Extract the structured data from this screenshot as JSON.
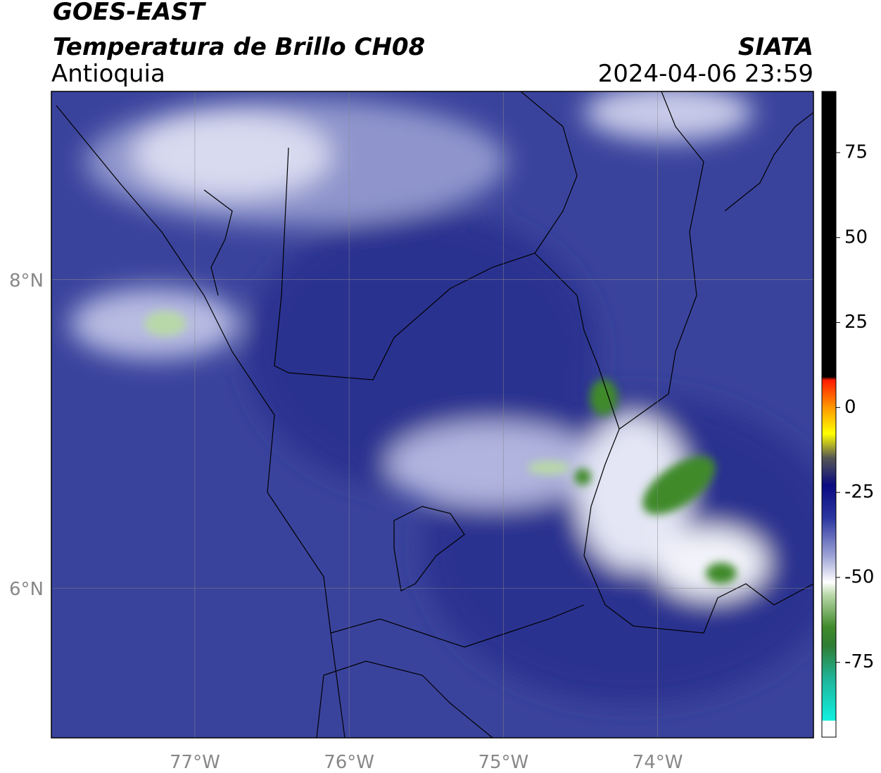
{
  "header": {
    "title": "GOES-EAST",
    "subtitle": "Temperatura de Brillo CH08",
    "region": "Antioquia",
    "source": "SIATA",
    "timestamp": "2024-04-06 23:59"
  },
  "map": {
    "lon_range": [
      -77.93,
      -72.99
    ],
    "lat_range": [
      5.03,
      9.22
    ],
    "lon_ticks": [
      {
        "value": -77,
        "label": "77°W"
      },
      {
        "value": -76,
        "label": "76°W"
      },
      {
        "value": -75,
        "label": "75°W"
      },
      {
        "value": -74,
        "label": "74°W"
      }
    ],
    "lat_ticks": [
      {
        "value": 8,
        "label": "8°N"
      },
      {
        "value": 6,
        "label": "6°N"
      }
    ]
  },
  "colorbar": {
    "range": [
      -97,
      93
    ],
    "ticks": [
      75,
      50,
      25,
      0,
      -25,
      -50,
      -75
    ]
  }
}
